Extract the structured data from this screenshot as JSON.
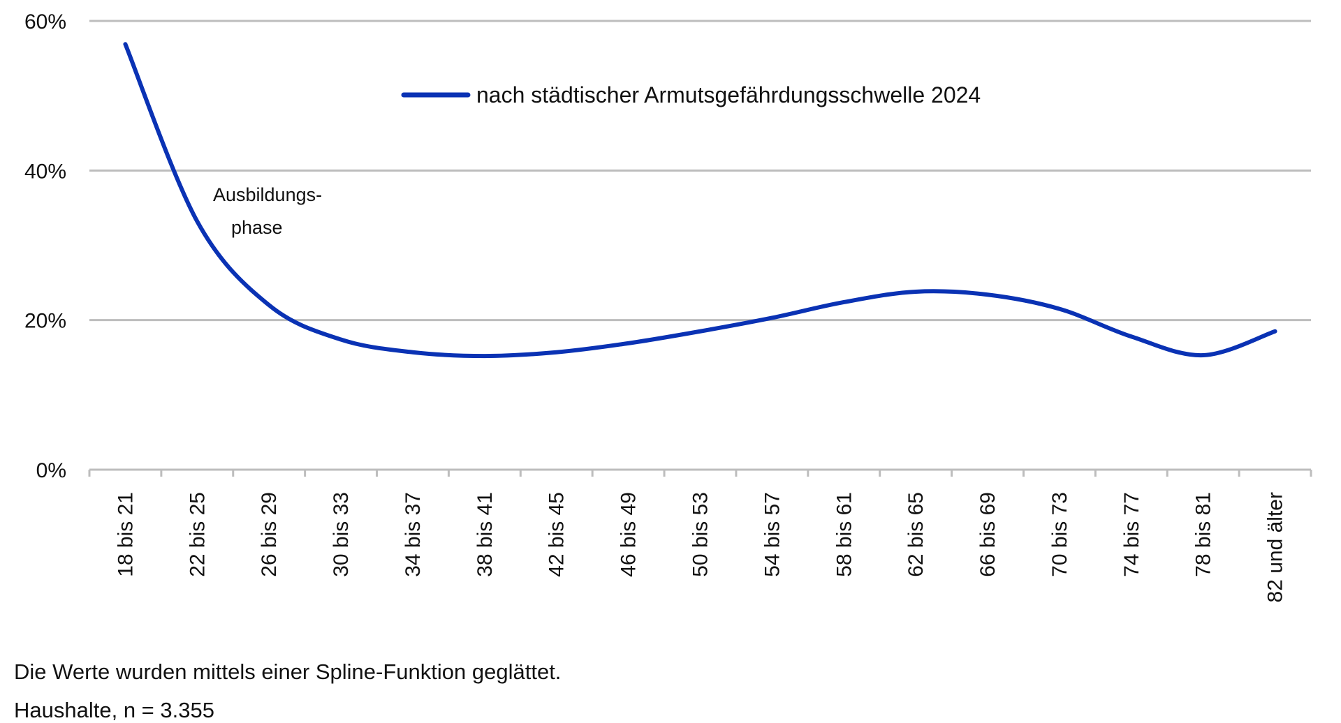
{
  "chart_data": {
    "type": "line",
    "title": "",
    "xlabel": "",
    "ylabel": "",
    "ylim": [
      0,
      60
    ],
    "yticks": [
      "0%",
      "20%",
      "40%",
      "60%"
    ],
    "grid": true,
    "legend_position": "top-center",
    "categories": [
      "18 bis 21",
      "22 bis 25",
      "26 bis 29",
      "30 bis 33",
      "34 bis 37",
      "38 bis 41",
      "42 bis 45",
      "46 bis 49",
      "50 bis 53",
      "54 bis 57",
      "58 bis 61",
      "62 bis 65",
      "66 bis 69",
      "70 bis 73",
      "74 bis 77",
      "78 bis 81",
      "82 und älter"
    ],
    "series": [
      {
        "name": "nach städtischer Armutsgefährdungsschwelle 2024",
        "color": "#0a32b4",
        "smoothed": true,
        "values": [
          56.9,
          33.2,
          22.0,
          17.4,
          15.7,
          15.2,
          15.7,
          16.9,
          18.5,
          20.3,
          22.4,
          23.8,
          23.4,
          21.5,
          17.8,
          15.3,
          18.5
        ]
      }
    ],
    "annotations": [
      {
        "text_line1": "Ausbildungs-",
        "text_line2": "phase",
        "near_category": "22 bis 25"
      }
    ]
  },
  "legend": {
    "label": "nach städtischer Armutsgefährdungsschwelle 2024"
  },
  "annotation": {
    "line1": "Ausbildungs-",
    "line2": "phase"
  },
  "footnotes": {
    "line1": "Die Werte wurden mittels einer Spline-Funktion geglättet.",
    "line2": "Haushalte, n = 3.355"
  }
}
